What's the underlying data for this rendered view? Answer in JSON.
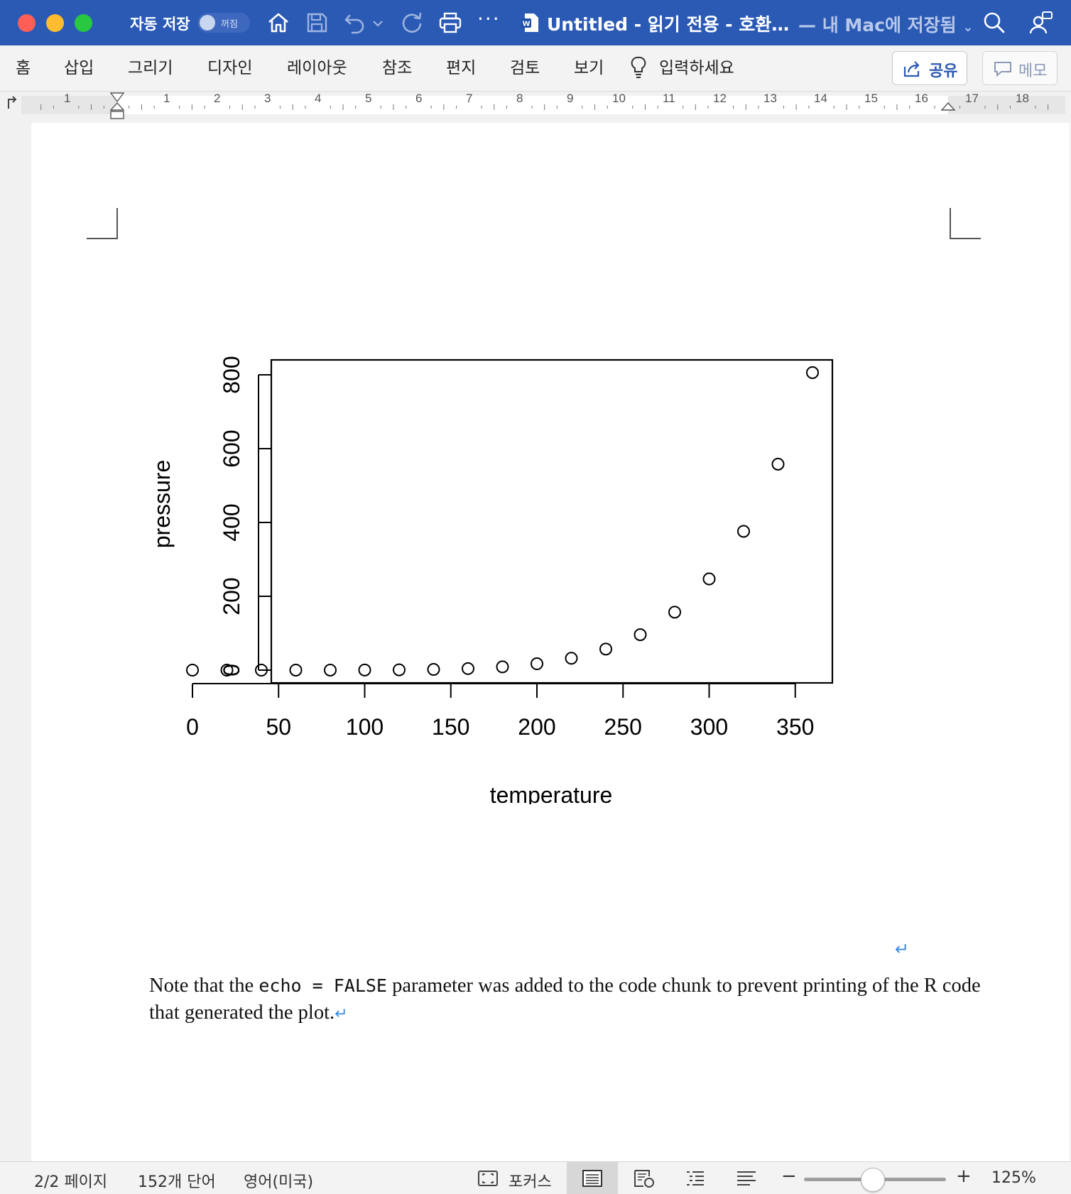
{
  "window": {
    "autosave_label": "자동 저장",
    "autosave_state": "꺼짐",
    "doc_title": "Untitled  -  읽기 전용  -  호환…",
    "doc_status": "— 내 Mac에 저장됨",
    "more": "···",
    "accent_color": "#2b5ab5"
  },
  "ribbon": {
    "tabs": [
      "홈",
      "삽입",
      "그리기",
      "디자인",
      "레이아웃",
      "참조",
      "편지",
      "검토",
      "보기"
    ],
    "tell_me": "입력하세요",
    "share_label": "공유",
    "memo_label": "메모"
  },
  "ruler": {
    "left_numbers": [
      "1"
    ],
    "numbers": [
      "1",
      "2",
      "3",
      "4",
      "5",
      "6",
      "7",
      "8",
      "9",
      "10",
      "11",
      "12",
      "13",
      "14",
      "15",
      "16",
      "17",
      "18"
    ]
  },
  "chart_data": {
    "type": "scatter",
    "title": "",
    "xlabel": "temperature",
    "ylabel": "pressure",
    "xlim": [
      0,
      360
    ],
    "ylim": [
      0,
      800
    ],
    "xticks": [
      "0",
      "50",
      "100",
      "150",
      "200",
      "250",
      "300",
      "350"
    ],
    "yticks": [
      "0",
      "200",
      "400",
      "600",
      "800"
    ],
    "x": [
      0,
      20,
      40,
      60,
      80,
      100,
      120,
      140,
      160,
      180,
      200,
      220,
      240,
      260,
      280,
      300,
      320,
      340,
      360
    ],
    "y": [
      0.0002,
      0.0012,
      0.006,
      0.03,
      0.09,
      0.27,
      0.75,
      1.85,
      4.2,
      8.8,
      17.3,
      32.1,
      57,
      96,
      157,
      247,
      376,
      558,
      806
    ],
    "grid": false,
    "legend": "none"
  },
  "document": {
    "para_part1": "Note that the ",
    "code1": "echo",
    "code_eq": " = ",
    "code2": "FALSE",
    "para_part2": " parameter was added to the code chunk to prevent printing of the R code that generated the plot.",
    "pilcrow": "↵"
  },
  "statusbar": {
    "page": "2/2 페이지",
    "words": "152개 단어",
    "language": "영어(미국)",
    "focus": "포커스",
    "zoom_minus": "−",
    "zoom_plus": "+",
    "zoom_level": "125%",
    "zoom_fraction": 0.48
  }
}
